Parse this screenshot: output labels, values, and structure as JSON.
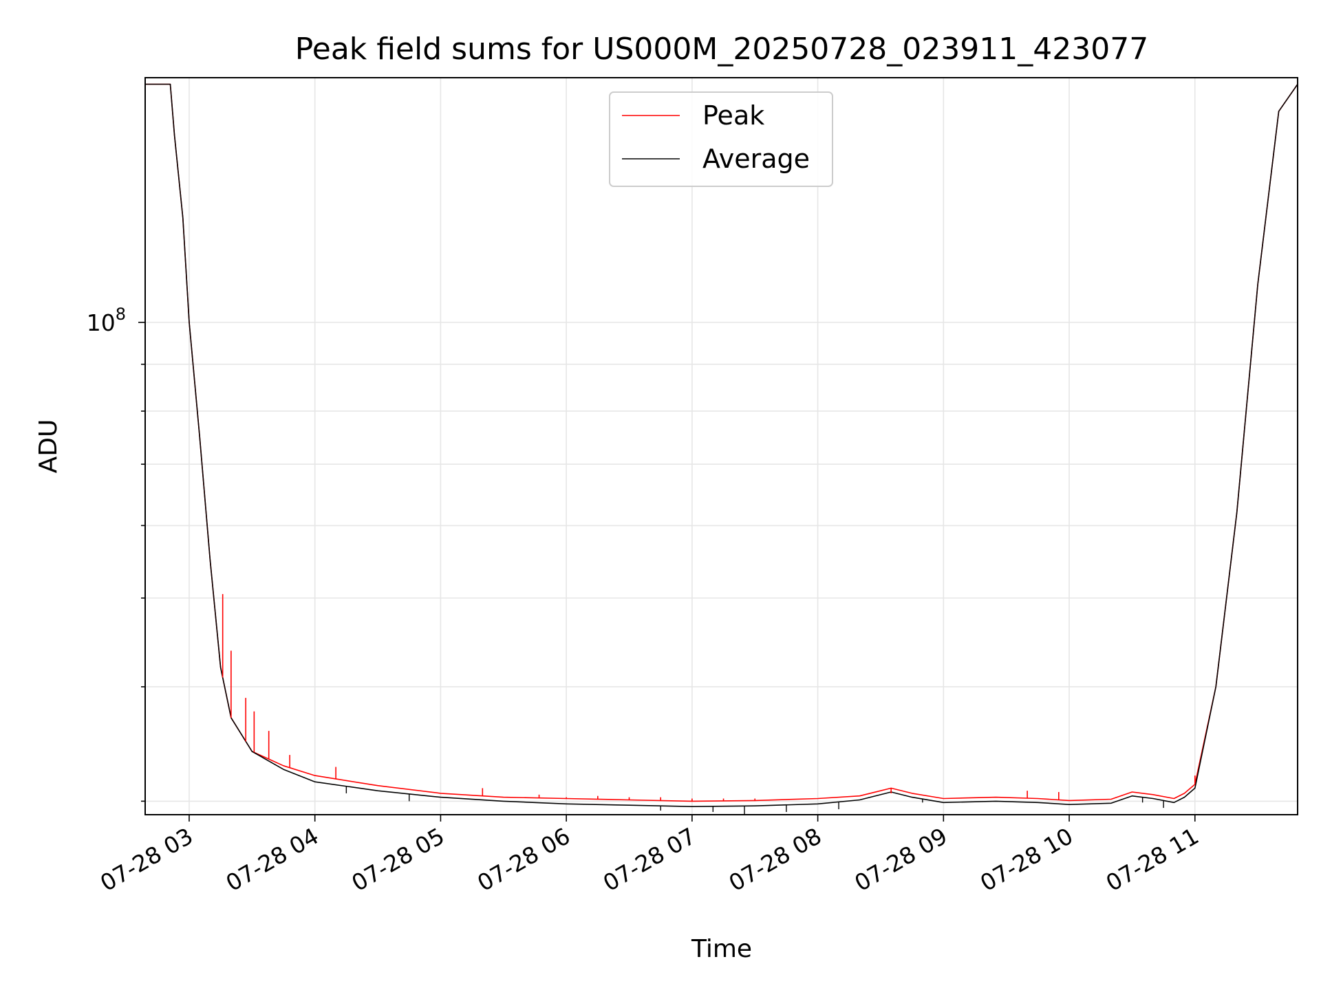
{
  "chart_data": {
    "type": "line",
    "title": "Peak field sums for US000M_20250728_023911_423077",
    "xlabel": "Time",
    "ylabel": "ADU",
    "yscale": "log",
    "x_date": "2025-07-28",
    "xlim": [
      "02:39",
      "11:49"
    ],
    "ylim": [
      29000000,
      185000000
    ],
    "ytick_labels": [
      {
        "value": 100000000,
        "mantissa": "10",
        "exponent": "8"
      }
    ],
    "xtick_labels": [
      {
        "time": "03:00",
        "label": "07-28 03"
      },
      {
        "time": "04:00",
        "label": "07-28 04"
      },
      {
        "time": "05:00",
        "label": "07-28 05"
      },
      {
        "time": "06:00",
        "label": "07-28 06"
      },
      {
        "time": "07:00",
        "label": "07-28 07"
      },
      {
        "time": "08:00",
        "label": "07-28 08"
      },
      {
        "time": "09:00",
        "label": "07-28 09"
      },
      {
        "time": "10:00",
        "label": "07-28 10"
      },
      {
        "time": "11:00",
        "label": "07-28 11"
      }
    ],
    "grid": true,
    "legend_position": "upper center",
    "series": [
      {
        "name": "Peak",
        "color": "#ff0000",
        "x": [
          "02:39",
          "02:51",
          "02:53",
          "02:57",
          "03:00",
          "03:05",
          "03:10",
          "03:15",
          "03:20",
          "03:30",
          "03:45",
          "04:00",
          "04:30",
          "05:00",
          "05:30",
          "06:00",
          "06:30",
          "07:00",
          "07:30",
          "08:00",
          "08:20",
          "08:35",
          "08:45",
          "09:00",
          "09:25",
          "09:45",
          "10:00",
          "10:20",
          "10:30",
          "10:40",
          "10:50",
          "10:55",
          "11:00",
          "11:10",
          "11:20",
          "11:30",
          "11:40",
          "11:49"
        ],
        "values": [
          182000000,
          182000000,
          160000000,
          130000000,
          100000000,
          75000000,
          55000000,
          42000000,
          37000000,
          34000000,
          32800000,
          32000000,
          31200000,
          30600000,
          30300000,
          30200000,
          30100000,
          30000000,
          30050000,
          30200000,
          30400000,
          31000000,
          30600000,
          30200000,
          30300000,
          30200000,
          30050000,
          30150000,
          30700000,
          30500000,
          30200000,
          30600000,
          31300000,
          40000000,
          62000000,
          110000000,
          170000000,
          182000000
        ],
        "spikes": [
          {
            "time": "03:16",
            "value": 50500000
          },
          {
            "time": "03:20",
            "value": 43800000
          },
          {
            "time": "03:27",
            "value": 38900000
          },
          {
            "time": "03:31",
            "value": 37600000
          },
          {
            "time": "03:38",
            "value": 35800000
          },
          {
            "time": "03:48",
            "value": 33700000
          },
          {
            "time": "04:10",
            "value": 32700000
          },
          {
            "time": "05:20",
            "value": 31000000
          },
          {
            "time": "05:47",
            "value": 30500000
          },
          {
            "time": "06:00",
            "value": 30300000
          },
          {
            "time": "06:15",
            "value": 30400000
          },
          {
            "time": "06:30",
            "value": 30300000
          },
          {
            "time": "06:45",
            "value": 30300000
          },
          {
            "time": "07:00",
            "value": 30200000
          },
          {
            "time": "07:15",
            "value": 30200000
          },
          {
            "time": "07:30",
            "value": 30200000
          },
          {
            "time": "08:35",
            "value": 30600000
          },
          {
            "time": "09:40",
            "value": 30800000
          },
          {
            "time": "09:55",
            "value": 30700000
          },
          {
            "time": "11:00",
            "value": 32000000
          }
        ]
      },
      {
        "name": "Average",
        "color": "#000000",
        "x": [
          "02:39",
          "02:51",
          "02:53",
          "02:57",
          "03:00",
          "03:05",
          "03:10",
          "03:15",
          "03:20",
          "03:30",
          "03:45",
          "04:00",
          "04:30",
          "05:00",
          "05:30",
          "06:00",
          "06:30",
          "07:00",
          "07:30",
          "08:00",
          "08:20",
          "08:35",
          "08:45",
          "09:00",
          "09:25",
          "09:45",
          "10:00",
          "10:20",
          "10:30",
          "10:40",
          "10:50",
          "10:55",
          "11:00",
          "11:10",
          "11:20",
          "11:30",
          "11:40",
          "11:49"
        ],
        "values": [
          182000000,
          182000000,
          160000000,
          130000000,
          100000000,
          75000000,
          55000000,
          42000000,
          37000000,
          34000000,
          32500000,
          31500000,
          30800000,
          30300000,
          30000000,
          29800000,
          29700000,
          29600000,
          29650000,
          29800000,
          30100000,
          30700000,
          30300000,
          29900000,
          30000000,
          29900000,
          29750000,
          29850000,
          30400000,
          30200000,
          29900000,
          30300000,
          31000000,
          40000000,
          62000000,
          110000000,
          170000000,
          182000000
        ],
        "dips": [
          {
            "time": "04:15",
            "value": 30600000
          },
          {
            "time": "04:45",
            "value": 30000000
          },
          {
            "time": "06:45",
            "value": 29300000
          },
          {
            "time": "07:10",
            "value": 29200000
          },
          {
            "time": "07:25",
            "value": 29000000
          },
          {
            "time": "07:45",
            "value": 29200000
          },
          {
            "time": "08:10",
            "value": 29400000
          },
          {
            "time": "08:50",
            "value": 29900000
          },
          {
            "time": "10:35",
            "value": 29900000
          },
          {
            "time": "10:45",
            "value": 29500000
          }
        ]
      }
    ]
  }
}
